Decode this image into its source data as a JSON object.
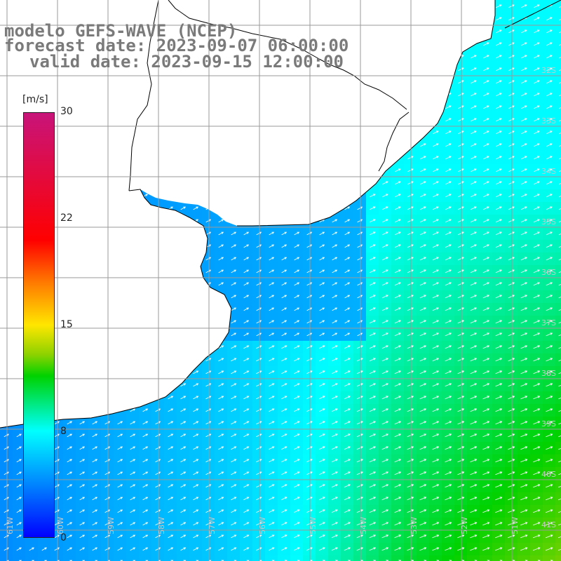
{
  "title": {
    "line1": "modelo GEFS-WAVE (NCEP)",
    "line2": "forecast date: 2023-09-07 06:00:00",
    "line3": "valid date: 2023-09-15 12:00:00"
  },
  "colorbar": {
    "unit": "[m/s]",
    "ticks": [
      "30",
      "22",
      "15",
      "8",
      "0"
    ],
    "tick_values": [
      30,
      22,
      15,
      8,
      0
    ],
    "min": 0,
    "max": 30
  },
  "axes": {
    "lat_labels": [
      "32S",
      "33S",
      "34S",
      "35S",
      "36S",
      "37S",
      "38S",
      "39S",
      "40S",
      "41S"
    ],
    "lon_labels": [
      "61W",
      "60W",
      "59W",
      "58W",
      "57W",
      "56W",
      "55W",
      "54W",
      "53W",
      "52W",
      "51W"
    ]
  },
  "colors": {
    "land": "#ffffff",
    "coast": "#000000",
    "grid": "#9a9a9a",
    "arrow": "#ffffff",
    "title": "#7a7a7a"
  },
  "chart_data": {
    "type": "heatmap",
    "variable": "wind speed with direction arrows",
    "units": "m/s",
    "color_range": [
      0,
      30
    ],
    "region": {
      "lon": [
        -62,
        -51
      ],
      "lat": [
        -42,
        -31
      ]
    },
    "field_summary": {
      "near_coast_north": 4,
      "estuary_region": 4,
      "offshore_central": 8,
      "southeast_open_ocean": 12
    },
    "arrow_direction": "toward northeast"
  }
}
